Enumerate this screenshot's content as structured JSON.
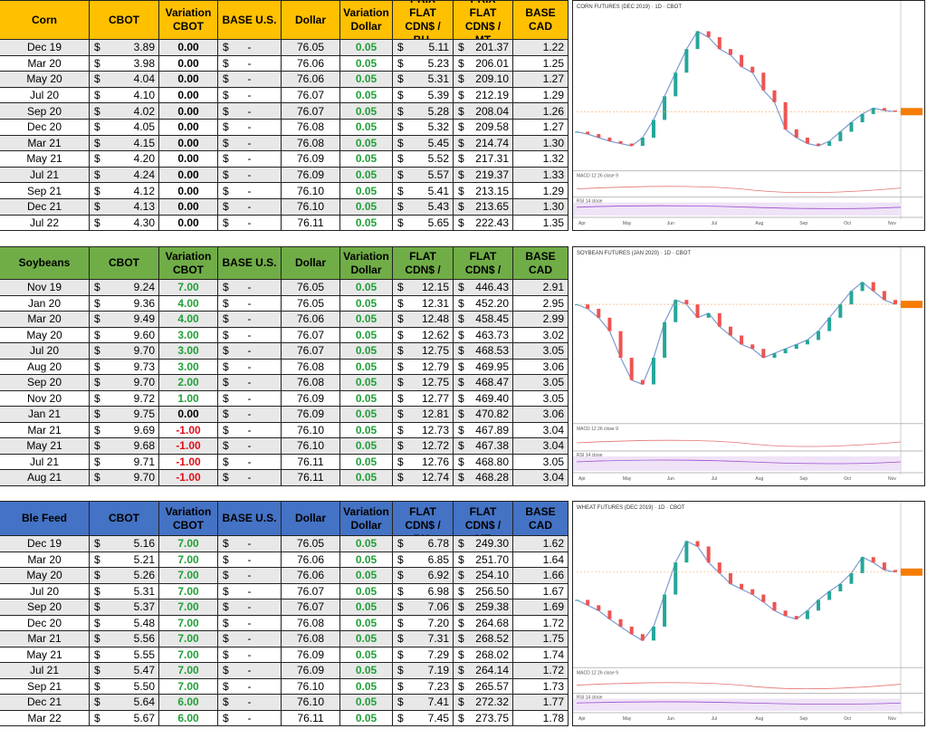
{
  "currency": "$",
  "header": [
    "CBOT",
    "Variation CBOT",
    "BASE U.S.",
    "Dollar",
    "Variation Dollar",
    "PRIX FLAT CDN$ / BU.",
    "PRIX FLAT CDN$ / MT",
    "BASE CAD"
  ],
  "stripe": "#e8e8e8",
  "tables": [
    {
      "name": "Corn",
      "color": "#ffc000",
      "rows": [
        [
          "Dec 19",
          "3.89",
          "0.00",
          "-",
          "76.05",
          "0.05",
          "5.11",
          "201.37",
          "1.22"
        ],
        [
          "Mar 20",
          "3.98",
          "0.00",
          "-",
          "76.06",
          "0.05",
          "5.23",
          "206.01",
          "1.25"
        ],
        [
          "May 20",
          "4.04",
          "0.00",
          "-",
          "76.06",
          "0.05",
          "5.31",
          "209.10",
          "1.27"
        ],
        [
          "Jul 20",
          "4.10",
          "0.00",
          "-",
          "76.07",
          "0.05",
          "5.39",
          "212.19",
          "1.29"
        ],
        [
          "Sep 20",
          "4.02",
          "0.00",
          "-",
          "76.07",
          "0.05",
          "5.28",
          "208.04",
          "1.26"
        ],
        [
          "Dec 20",
          "4.05",
          "0.00",
          "-",
          "76.08",
          "0.05",
          "5.32",
          "209.58",
          "1.27"
        ],
        [
          "Mar 21",
          "4.15",
          "0.00",
          "-",
          "76.08",
          "0.05",
          "5.45",
          "214.74",
          "1.30"
        ],
        [
          "May 21",
          "4.20",
          "0.00",
          "-",
          "76.09",
          "0.05",
          "5.52",
          "217.31",
          "1.32"
        ],
        [
          "Jul 21",
          "4.24",
          "0.00",
          "-",
          "76.09",
          "0.05",
          "5.57",
          "219.37",
          "1.33"
        ],
        [
          "Sep 21",
          "4.12",
          "0.00",
          "-",
          "76.10",
          "0.05",
          "5.41",
          "213.15",
          "1.29"
        ],
        [
          "Dec 21",
          "4.13",
          "0.00",
          "-",
          "76.10",
          "0.05",
          "5.43",
          "213.65",
          "1.30"
        ],
        [
          "Jul 22",
          "4.30",
          "0.00",
          "-",
          "76.11",
          "0.05",
          "5.65",
          "222.43",
          "1.35"
        ]
      ]
    },
    {
      "name": "Soybeans",
      "color": "#70ad47",
      "rows": [
        [
          "Nov 19",
          "9.24",
          "7.00",
          "-",
          "76.05",
          "0.05",
          "12.15",
          "446.43",
          "2.91"
        ],
        [
          "Jan 20",
          "9.36",
          "4.00",
          "-",
          "76.05",
          "0.05",
          "12.31",
          "452.20",
          "2.95"
        ],
        [
          "Mar 20",
          "9.49",
          "4.00",
          "-",
          "76.06",
          "0.05",
          "12.48",
          "458.45",
          "2.99"
        ],
        [
          "May 20",
          "9.60",
          "3.00",
          "-",
          "76.07",
          "0.05",
          "12.62",
          "463.73",
          "3.02"
        ],
        [
          "Jul 20",
          "9.70",
          "3.00",
          "-",
          "76.07",
          "0.05",
          "12.75",
          "468.53",
          "3.05"
        ],
        [
          "Aug 20",
          "9.73",
          "3.00",
          "-",
          "76.08",
          "0.05",
          "12.79",
          "469.95",
          "3.06"
        ],
        [
          "Sep 20",
          "9.70",
          "2.00",
          "-",
          "76.08",
          "0.05",
          "12.75",
          "468.47",
          "3.05"
        ],
        [
          "Nov 20",
          "9.72",
          "1.00",
          "-",
          "76.09",
          "0.05",
          "12.77",
          "469.40",
          "3.05"
        ],
        [
          "Jan 21",
          "9.75",
          "0.00",
          "-",
          "76.09",
          "0.05",
          "12.81",
          "470.82",
          "3.06"
        ],
        [
          "Mar 21",
          "9.69",
          "-1.00",
          "-",
          "76.10",
          "0.05",
          "12.73",
          "467.89",
          "3.04"
        ],
        [
          "May 21",
          "9.68",
          "-1.00",
          "-",
          "76.10",
          "0.05",
          "12.72",
          "467.38",
          "3.04"
        ],
        [
          "Jul 21",
          "9.71",
          "-1.00",
          "-",
          "76.11",
          "0.05",
          "12.76",
          "468.80",
          "3.05"
        ],
        [
          "Aug 21",
          "9.70",
          "-1.00",
          "-",
          "76.11",
          "0.05",
          "12.74",
          "468.28",
          "3.04"
        ]
      ]
    },
    {
      "name": "Ble Feed",
      "color": "#4472c4",
      "rows": [
        [
          "Dec 19",
          "5.16",
          "7.00",
          "-",
          "76.05",
          "0.05",
          "6.78",
          "249.30",
          "1.62"
        ],
        [
          "Mar 20",
          "5.21",
          "7.00",
          "-",
          "76.06",
          "0.05",
          "6.85",
          "251.70",
          "1.64"
        ],
        [
          "May 20",
          "5.26",
          "7.00",
          "-",
          "76.06",
          "0.05",
          "6.92",
          "254.10",
          "1.66"
        ],
        [
          "Jul 20",
          "5.31",
          "7.00",
          "-",
          "76.07",
          "0.05",
          "6.98",
          "256.50",
          "1.67"
        ],
        [
          "Sep 20",
          "5.37",
          "7.00",
          "-",
          "76.07",
          "0.05",
          "7.06",
          "259.38",
          "1.69"
        ],
        [
          "Dec 20",
          "5.48",
          "7.00",
          "-",
          "76.08",
          "0.05",
          "7.20",
          "264.68",
          "1.72"
        ],
        [
          "Mar 21",
          "5.56",
          "7.00",
          "-",
          "76.08",
          "0.05",
          "7.31",
          "268.52",
          "1.75"
        ],
        [
          "May 21",
          "5.55",
          "7.00",
          "-",
          "76.09",
          "0.05",
          "7.29",
          "268.02",
          "1.74"
        ],
        [
          "Jul 21",
          "5.47",
          "7.00",
          "-",
          "76.09",
          "0.05",
          "7.19",
          "264.14",
          "1.72"
        ],
        [
          "Sep 21",
          "5.50",
          "7.00",
          "-",
          "76.10",
          "0.05",
          "7.23",
          "265.57",
          "1.73"
        ],
        [
          "Dec 21",
          "5.64",
          "6.00",
          "-",
          "76.10",
          "0.05",
          "7.41",
          "272.32",
          "1.77"
        ],
        [
          "Mar 22",
          "5.67",
          "6.00",
          "-",
          "76.11",
          "0.05",
          "7.45",
          "273.75",
          "1.78"
        ]
      ]
    }
  ],
  "charts": [
    {
      "title": "CORN FUTURES (DEC 2019) · 1D · CBOT",
      "macd": "MACD 12 26 close 9",
      "rsi": "RSI 14 close",
      "months": [
        "Apr",
        "May",
        "Jun",
        "Jul",
        "Aug",
        "Sep",
        "Oct",
        "Nov"
      ],
      "ylim": [
        340,
        470
      ],
      "closes": [
        370,
        368,
        365,
        362,
        360,
        358,
        365,
        380,
        400,
        420,
        440,
        455,
        450,
        440,
        435,
        425,
        420,
        405,
        395,
        372,
        365,
        360,
        358,
        362,
        370,
        378,
        385,
        390,
        388,
        387
      ]
    },
    {
      "title": "SOYBEAN FUTURES (JAN 2020) · 1D · CBOT",
      "macd": "MACD 12 26 close 9",
      "rsi": "RSI 14 close",
      "months": [
        "Apr",
        "May",
        "Jun",
        "Jul",
        "Aug",
        "Sep",
        "Oct",
        "Nov"
      ],
      "ylim": [
        800,
        980
      ],
      "closes": [
        930,
        925,
        915,
        900,
        870,
        845,
        840,
        870,
        910,
        935,
        930,
        915,
        920,
        905,
        895,
        885,
        880,
        870,
        875,
        880,
        885,
        890,
        900,
        915,
        930,
        945,
        955,
        945,
        935,
        930
      ]
    },
    {
      "title": "WHEAT FUTURES (DEC 2019) · 1D · CBOT",
      "macd": "MACD 12 26 close 9",
      "rsi": "RSI 14 close",
      "months": [
        "Apr",
        "May",
        "Jun",
        "Jul",
        "Aug",
        "Sep",
        "Oct",
        "Nov"
      ],
      "ylim": [
        420,
        560
      ],
      "closes": [
        480,
        475,
        470,
        462,
        455,
        448,
        442,
        455,
        485,
        515,
        535,
        530,
        515,
        505,
        495,
        490,
        485,
        478,
        470,
        465,
        462,
        470,
        480,
        488,
        495,
        505,
        520,
        515,
        508,
        506
      ]
    }
  ]
}
